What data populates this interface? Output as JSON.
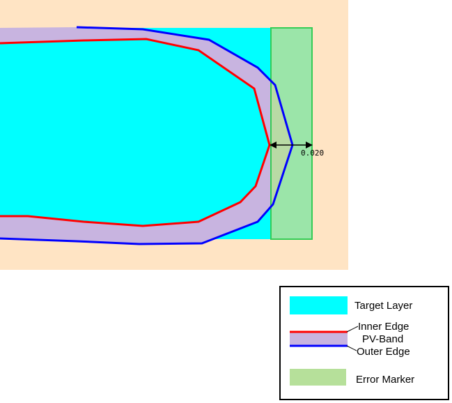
{
  "colors": {
    "background": "#ffe4c4",
    "target_layer": "#00ffff",
    "pv_band": "#c8b4e0",
    "inner_edge": "#ff0000",
    "outer_edge": "#0000ff",
    "error_marker": "#b6e09a",
    "error_marker_stroke": "#33cc55",
    "legend_border": "#000000"
  },
  "measurement": {
    "value": "0.020"
  },
  "legend": {
    "target_layer": "Target Layer",
    "inner_edge": "Inner Edge",
    "pv_band": "PV-Band",
    "outer_edge": "Outer Edge",
    "error_marker": "Error Marker"
  }
}
